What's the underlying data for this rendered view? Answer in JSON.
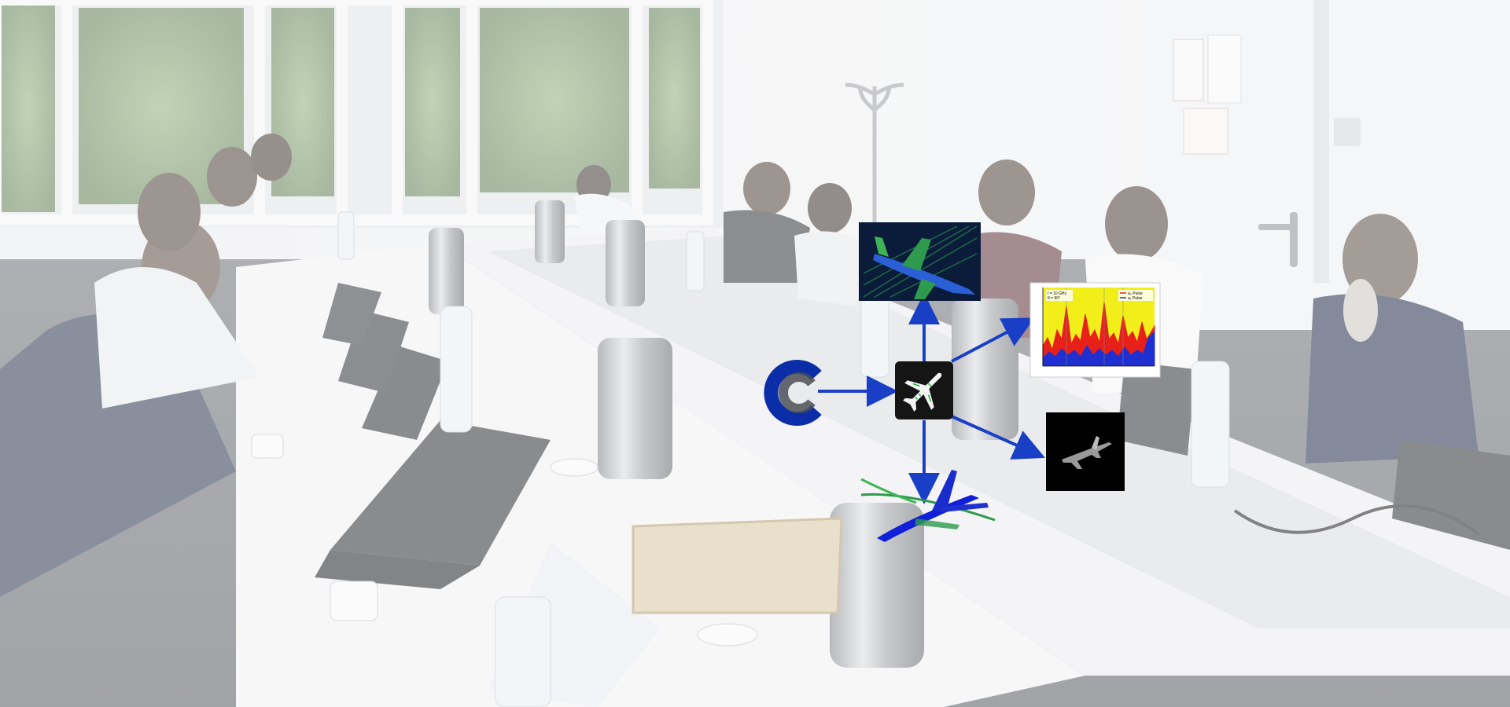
{
  "photo": {
    "description_free": true,
    "overlay_tint": "#ffffff",
    "overlay_opacity": 0.45
  },
  "workflow_diagram": {
    "arrow_color": "#1a3fc7",
    "hub_icon": "airplane-icon",
    "source_logo": "c-logo-icon",
    "outputs": [
      "airplane-mesh-render",
      "spectrum-plot",
      "airplane-silhouette-dark",
      "airplane-flow-render"
    ]
  },
  "spectrum_plot": {
    "legend": [
      "a₀ Pulse",
      "a₁ Pulse"
    ],
    "info_lines": [
      "f = 10 GHz",
      "θ = 90°"
    ],
    "colors": {
      "red": "#e8201a",
      "blue": "#2030d0",
      "yellow": "#f2ee1a"
    }
  }
}
